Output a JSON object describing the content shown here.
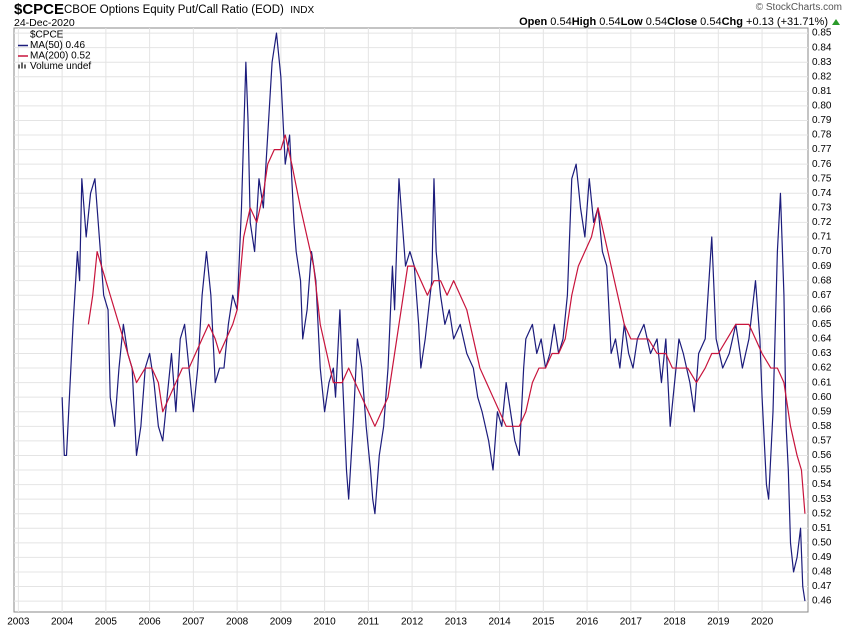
{
  "header": {
    "symbol": "$CPCE",
    "description": "CBOE Options Equity Put/Call Ratio (EOD)",
    "exchange": "INDX",
    "date": "24-Dec-2020",
    "copyright": "© StockCharts.com",
    "quote": [
      {
        "label": "Open",
        "value": "0.54"
      },
      {
        "label": "High",
        "value": "0.54"
      },
      {
        "label": "Low",
        "value": "0.54"
      },
      {
        "label": "Close",
        "value": "0.54"
      },
      {
        "label": "Chg",
        "value": "+0.13 (+31.71%)"
      }
    ]
  },
  "chart_data": {
    "type": "line",
    "legend_title": "$CPCE",
    "legend": "top-left",
    "grid": true,
    "extra_legend": "Volume undef",
    "xlim": [
      2002.9,
      2021.05
    ],
    "xticks": [
      2003,
      2004,
      2005,
      2006,
      2007,
      2008,
      2009,
      2010,
      2011,
      2012,
      2013,
      2014,
      2015,
      2016,
      2017,
      2018,
      2019,
      2020
    ],
    "ylim": [
      0.4525,
      0.8535
    ],
    "yticks": [
      0.46,
      0.47,
      0.48,
      0.49,
      {
        "value": 0.5,
        "label": "0.50"
      },
      0.51,
      0.52,
      0.53,
      0.54,
      0.55,
      0.56,
      0.57,
      0.58,
      0.59,
      {
        "value": 0.6,
        "label": "0.60"
      },
      0.61,
      0.62,
      0.63,
      0.64,
      0.65,
      0.66,
      0.67,
      0.68,
      0.69,
      {
        "value": 0.7,
        "label": "0.70"
      },
      0.71,
      0.72,
      0.73,
      0.74,
      0.75,
      0.76,
      0.77,
      0.78,
      0.79,
      {
        "value": 0.8,
        "label": "0.80"
      },
      0.81,
      0.82,
      0.83,
      0.84,
      0.85
    ],
    "series": [
      {
        "name": "MA(50) 0.46",
        "color": "#1c1c7c",
        "x": [
          2004.0,
          2004.05,
          2004.1,
          2004.2,
          2004.25,
          2004.35,
          2004.4,
          2004.45,
          2004.55,
          2004.65,
          2004.75,
          2004.85,
          2004.95,
          2005.05,
          2005.1,
          2005.2,
          2005.3,
          2005.4,
          2005.5,
          2005.6,
          2005.7,
          2005.8,
          2005.9,
          2006.0,
          2006.1,
          2006.2,
          2006.3,
          2006.4,
          2006.5,
          2006.6,
          2006.7,
          2006.8,
          2006.9,
          2007.0,
          2007.1,
          2007.2,
          2007.3,
          2007.4,
          2007.5,
          2007.6,
          2007.7,
          2007.8,
          2007.9,
          2008.0,
          2008.1,
          2008.2,
          2008.25,
          2008.3,
          2008.4,
          2008.5,
          2008.6,
          2008.7,
          2008.8,
          2008.9,
          2009.0,
          2009.1,
          2009.2,
          2009.3,
          2009.35,
          2009.45,
          2009.5,
          2009.6,
          2009.7,
          2009.8,
          2009.9,
          2010.0,
          2010.1,
          2010.2,
          2010.25,
          2010.35,
          2010.4,
          2010.5,
          2010.55,
          2010.65,
          2010.75,
          2010.85,
          2010.95,
          2011.05,
          2011.1,
          2011.15,
          2011.25,
          2011.35,
          2011.45,
          2011.55,
          2011.6,
          2011.7,
          2011.75,
          2011.85,
          2011.95,
          2012.05,
          2012.15,
          2012.2,
          2012.3,
          2012.45,
          2012.5,
          2012.55,
          2012.65,
          2012.75,
          2012.85,
          2012.95,
          2013.1,
          2013.25,
          2013.4,
          2013.5,
          2013.6,
          2013.75,
          2013.85,
          2013.95,
          2014.05,
          2014.15,
          2014.25,
          2014.35,
          2014.45,
          2014.55,
          2014.6,
          2014.75,
          2014.85,
          2014.95,
          2015.05,
          2015.15,
          2015.25,
          2015.35,
          2015.45,
          2015.55,
          2015.65,
          2015.75,
          2015.85,
          2015.95,
          2016.05,
          2016.15,
          2016.25,
          2016.35,
          2016.45,
          2016.55,
          2016.65,
          2016.75,
          2016.85,
          2016.95,
          2017.05,
          2017.15,
          2017.3,
          2017.45,
          2017.6,
          2017.7,
          2017.8,
          2017.9,
          2018.0,
          2018.1,
          2018.2,
          2018.35,
          2018.45,
          2018.55,
          2018.7,
          2018.85,
          2018.95,
          2019.1,
          2019.25,
          2019.4,
          2019.55,
          2019.7,
          2019.85,
          2019.95,
          2020.0,
          2020.1,
          2020.15,
          2020.25,
          2020.35,
          2020.42,
          2020.5,
          2020.55,
          2020.6,
          2020.65,
          2020.72,
          2020.8,
          2020.88,
          2020.93,
          2020.98
        ],
        "values": [
          0.6,
          0.56,
          0.56,
          0.62,
          0.65,
          0.7,
          0.68,
          0.75,
          0.71,
          0.74,
          0.75,
          0.71,
          0.67,
          0.66,
          0.6,
          0.58,
          0.62,
          0.65,
          0.63,
          0.62,
          0.56,
          0.58,
          0.62,
          0.63,
          0.61,
          0.58,
          0.57,
          0.6,
          0.63,
          0.59,
          0.64,
          0.65,
          0.62,
          0.59,
          0.62,
          0.67,
          0.7,
          0.67,
          0.61,
          0.62,
          0.62,
          0.65,
          0.67,
          0.66,
          0.73,
          0.83,
          0.79,
          0.72,
          0.7,
          0.75,
          0.73,
          0.78,
          0.83,
          0.85,
          0.82,
          0.76,
          0.78,
          0.72,
          0.7,
          0.68,
          0.64,
          0.66,
          0.7,
          0.68,
          0.62,
          0.59,
          0.61,
          0.62,
          0.6,
          0.66,
          0.62,
          0.55,
          0.53,
          0.58,
          0.64,
          0.62,
          0.58,
          0.55,
          0.53,
          0.52,
          0.56,
          0.58,
          0.62,
          0.69,
          0.66,
          0.75,
          0.73,
          0.69,
          0.7,
          0.69,
          0.65,
          0.62,
          0.64,
          0.68,
          0.75,
          0.7,
          0.67,
          0.65,
          0.66,
          0.64,
          0.65,
          0.63,
          0.62,
          0.6,
          0.59,
          0.57,
          0.55,
          0.59,
          0.58,
          0.61,
          0.59,
          0.57,
          0.56,
          0.62,
          0.64,
          0.65,
          0.63,
          0.64,
          0.62,
          0.63,
          0.65,
          0.63,
          0.64,
          0.67,
          0.75,
          0.76,
          0.73,
          0.71,
          0.75,
          0.72,
          0.73,
          0.7,
          0.69,
          0.63,
          0.64,
          0.62,
          0.65,
          0.63,
          0.62,
          0.64,
          0.65,
          0.63,
          0.64,
          0.61,
          0.64,
          0.58,
          0.61,
          0.64,
          0.63,
          0.61,
          0.59,
          0.63,
          0.64,
          0.71,
          0.64,
          0.62,
          0.63,
          0.65,
          0.62,
          0.64,
          0.68,
          0.64,
          0.6,
          0.54,
          0.53,
          0.59,
          0.7,
          0.74,
          0.67,
          0.58,
          0.55,
          0.5,
          0.48,
          0.49,
          0.51,
          0.47,
          0.46
        ]
      },
      {
        "name": "MA(200) 0.52",
        "color": "#c8143c",
        "x": [
          2004.6,
          2004.7,
          2004.8,
          2004.9,
          2005.0,
          2005.1,
          2005.2,
          2005.3,
          2005.5,
          2005.7,
          2005.9,
          2006.05,
          2006.2,
          2006.3,
          2006.45,
          2006.6,
          2006.75,
          2006.9,
          2007.05,
          2007.2,
          2007.35,
          2007.5,
          2007.6,
          2007.75,
          2007.9,
          2008.0,
          2008.15,
          2008.3,
          2008.45,
          2008.6,
          2008.7,
          2008.85,
          2009.0,
          2009.1,
          2009.25,
          2009.45,
          2009.6,
          2009.75,
          2009.9,
          2010.05,
          2010.2,
          2010.4,
          2010.55,
          2010.7,
          2010.85,
          2011.0,
          2011.15,
          2011.3,
          2011.45,
          2011.6,
          2011.75,
          2011.9,
          2012.05,
          2012.2,
          2012.35,
          2012.5,
          2012.65,
          2012.8,
          2012.95,
          2013.1,
          2013.25,
          2013.4,
          2013.55,
          2013.7,
          2013.85,
          2014.0,
          2014.15,
          2014.3,
          2014.45,
          2014.6,
          2014.75,
          2014.9,
          2015.05,
          2015.2,
          2015.35,
          2015.5,
          2015.65,
          2015.8,
          2015.95,
          2016.1,
          2016.25,
          2016.4,
          2016.55,
          2016.7,
          2016.85,
          2017.0,
          2017.2,
          2017.4,
          2017.6,
          2017.8,
          2017.95,
          2018.1,
          2018.3,
          2018.5,
          2018.7,
          2018.85,
          2019.0,
          2019.2,
          2019.4,
          2019.55,
          2019.7,
          2019.85,
          2020.0,
          2020.2,
          2020.35,
          2020.5,
          2020.65,
          2020.8,
          2020.9,
          2020.98
        ],
        "values": [
          0.65,
          0.67,
          0.7,
          0.69,
          0.68,
          0.67,
          0.66,
          0.65,
          0.63,
          0.61,
          0.62,
          0.62,
          0.61,
          0.59,
          0.6,
          0.61,
          0.62,
          0.62,
          0.63,
          0.64,
          0.65,
          0.64,
          0.63,
          0.64,
          0.65,
          0.66,
          0.71,
          0.73,
          0.72,
          0.74,
          0.76,
          0.77,
          0.77,
          0.78,
          0.76,
          0.73,
          0.71,
          0.69,
          0.65,
          0.63,
          0.61,
          0.61,
          0.62,
          0.61,
          0.6,
          0.59,
          0.58,
          0.59,
          0.6,
          0.63,
          0.66,
          0.69,
          0.69,
          0.68,
          0.67,
          0.68,
          0.68,
          0.67,
          0.68,
          0.67,
          0.66,
          0.64,
          0.62,
          0.61,
          0.6,
          0.59,
          0.58,
          0.58,
          0.58,
          0.59,
          0.61,
          0.62,
          0.62,
          0.63,
          0.63,
          0.64,
          0.67,
          0.69,
          0.7,
          0.71,
          0.73,
          0.71,
          0.69,
          0.67,
          0.65,
          0.64,
          0.64,
          0.64,
          0.63,
          0.63,
          0.62,
          0.62,
          0.62,
          0.61,
          0.62,
          0.63,
          0.63,
          0.64,
          0.65,
          0.65,
          0.65,
          0.64,
          0.63,
          0.62,
          0.62,
          0.61,
          0.58,
          0.56,
          0.55,
          0.52
        ]
      }
    ]
  }
}
